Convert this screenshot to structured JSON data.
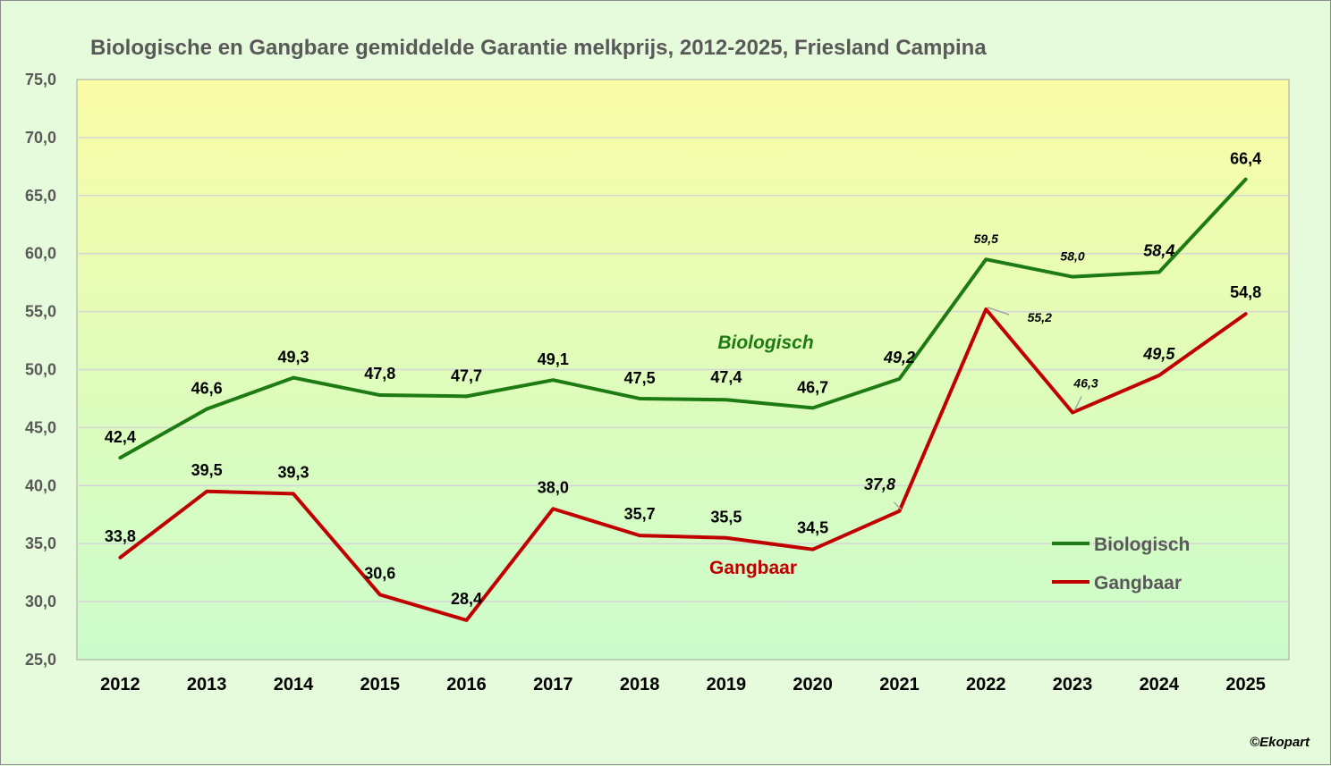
{
  "chart_data": {
    "type": "line",
    "title": "Biologische en Gangbare gemiddelde Garantie  melkprijs, 2012-2025,  Friesland Campina",
    "categories": [
      "2012",
      "2013",
      "2014",
      "2015",
      "2016",
      "2017",
      "2018",
      "2019",
      "2020",
      "2021",
      "2022",
      "2023",
      "2024",
      "2025"
    ],
    "ylim": [
      25,
      75
    ],
    "yticks": [
      25,
      30,
      35,
      40,
      45,
      50,
      55,
      60,
      65,
      70,
      75
    ],
    "ytick_labels": [
      "25,0",
      "30,0",
      "35,0",
      "40,0",
      "45,0",
      "50,0",
      "55,0",
      "60,0",
      "65,0",
      "70,0",
      "75,0"
    ],
    "grid": true,
    "legend_position": "right",
    "series": [
      {
        "name": "Biologisch",
        "color": "#1e7a12",
        "values": [
          42.4,
          46.6,
          49.3,
          47.8,
          47.7,
          49.1,
          47.5,
          47.4,
          46.7,
          49.2,
          59.5,
          58.0,
          58.4,
          66.4
        ],
        "labels": [
          "42,4",
          "46,6",
          "49,3",
          "47,8",
          "47,7",
          "49,1",
          "47,5",
          "47,4",
          "46,7",
          "49,2",
          "59,5",
          "58,0",
          "58,4",
          "66,4"
        ]
      },
      {
        "name": "Gangbaar",
        "color": "#c00000",
        "values": [
          33.8,
          39.5,
          39.3,
          30.6,
          28.4,
          38.0,
          35.7,
          35.5,
          34.5,
          37.8,
          55.2,
          46.3,
          49.5,
          54.8
        ],
        "labels": [
          "33,8",
          "39,5",
          "39,3",
          "30,6",
          "28,4",
          "38,0",
          "35,7",
          "35,5",
          "34,5",
          "37,8",
          "55,2",
          "46,3",
          "49,5",
          "54,8"
        ]
      }
    ],
    "annotations": [
      {
        "text": "Biologisch",
        "color": "#1e7a12"
      },
      {
        "text": "Gangbaar",
        "color": "#c00000"
      }
    ],
    "copyright": "©Ekopart"
  }
}
